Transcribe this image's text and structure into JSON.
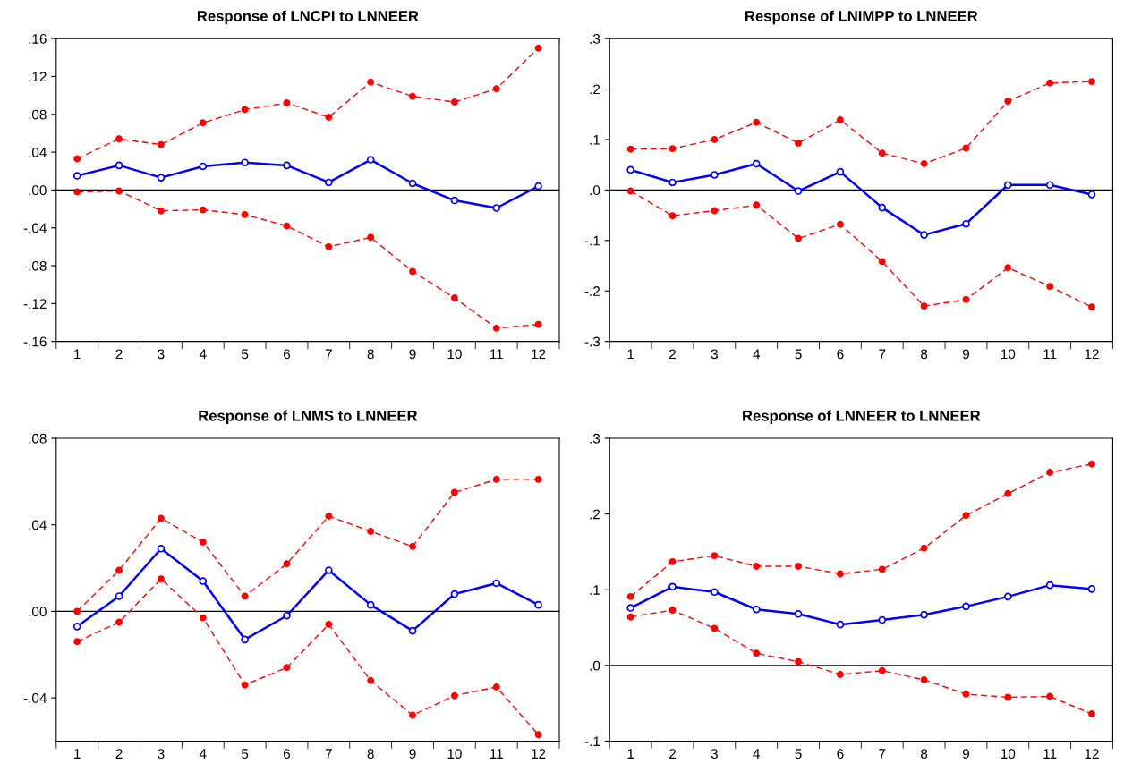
{
  "chart_data": [
    {
      "type": "line",
      "title": "Response of LNCPI to LNNEER",
      "categories": [
        "1",
        "2",
        "3",
        "4",
        "5",
        "6",
        "7",
        "8",
        "9",
        "10",
        "11",
        "12"
      ],
      "ylim": [
        -0.16,
        0.16
      ],
      "yticks": [
        {
          "value": -0.16,
          "label": "-.16"
        },
        {
          "value": -0.12,
          "label": "-.12"
        },
        {
          "value": -0.08,
          "label": "-.08"
        },
        {
          "value": -0.04,
          "label": "-.04"
        },
        {
          "value": 0,
          "label": ".00"
        },
        {
          "value": 0.04,
          "label": ".04"
        },
        {
          "value": 0.08,
          "label": ".08"
        },
        {
          "value": 0.12,
          "label": ".12"
        },
        {
          "value": 0.16,
          "label": ".16"
        }
      ],
      "grid": false,
      "legend": false,
      "ref_lines": [
        {
          "axis": "y",
          "value": 0,
          "color": "#000000"
        }
      ],
      "series": [
        {
          "color": "#ff0000",
          "marker": "circle",
          "line_style": "dashed",
          "values": [
            0.033,
            0.054,
            0.048,
            0.071,
            0.085,
            0.092,
            0.077,
            0.114,
            0.099,
            0.093,
            0.107,
            0.15
          ]
        },
        {
          "color": "#ff0000",
          "marker": "circle",
          "line_style": "dashed",
          "values": [
            -0.002,
            -0.001,
            -0.022,
            -0.021,
            -0.026,
            -0.038,
            -0.06,
            -0.05,
            -0.086,
            -0.114,
            -0.146,
            -0.142
          ]
        },
        {
          "color": "#0000ff",
          "marker": "circle",
          "line_style": "solid",
          "values": [
            0.015,
            0.026,
            0.013,
            0.025,
            0.029,
            0.026,
            0.008,
            0.032,
            0.007,
            -0.011,
            -0.019,
            0.004
          ]
        }
      ]
    },
    {
      "type": "line",
      "title": "Response of LNIMPP to LNNEER",
      "categories": [
        "1",
        "2",
        "3",
        "4",
        "5",
        "6",
        "7",
        "8",
        "9",
        "10",
        "11",
        "12"
      ],
      "ylim": [
        -0.3,
        0.3
      ],
      "yticks": [
        {
          "value": -0.3,
          "label": "-.3"
        },
        {
          "value": -0.2,
          "label": "-.2"
        },
        {
          "value": -0.1,
          "label": "-.1"
        },
        {
          "value": 0,
          "label": ".0"
        },
        {
          "value": 0.1,
          "label": ".1"
        },
        {
          "value": 0.2,
          "label": ".2"
        },
        {
          "value": 0.3,
          "label": ".3"
        }
      ],
      "grid": false,
      "legend": false,
      "ref_lines": [
        {
          "axis": "y",
          "value": 0,
          "color": "#000000"
        }
      ],
      "series": [
        {
          "color": "#ff0000",
          "marker": "circle",
          "line_style": "dashed",
          "values": [
            0.081,
            0.082,
            0.1,
            0.134,
            0.093,
            0.139,
            0.073,
            0.052,
            0.083,
            0.176,
            0.212,
            0.215
          ]
        },
        {
          "color": "#ff0000",
          "marker": "circle",
          "line_style": "dashed",
          "values": [
            -0.002,
            -0.051,
            -0.041,
            -0.03,
            -0.096,
            -0.068,
            -0.142,
            -0.23,
            -0.217,
            -0.154,
            -0.191,
            -0.232
          ]
        },
        {
          "color": "#0000ff",
          "marker": "circle",
          "line_style": "solid",
          "values": [
            0.04,
            0.015,
            0.03,
            0.052,
            -0.002,
            0.036,
            -0.035,
            -0.089,
            -0.067,
            0.01,
            0.01,
            -0.009
          ]
        }
      ]
    },
    {
      "type": "line",
      "title": "Response of LNMS to LNNEER",
      "categories": [
        "1",
        "2",
        "3",
        "4",
        "5",
        "6",
        "7",
        "8",
        "9",
        "10",
        "11",
        "12"
      ],
      "ylim": [
        -0.06,
        0.08
      ],
      "yticks": [
        {
          "value": -0.04,
          "label": "-.04"
        },
        {
          "value": 0,
          "label": ".00"
        },
        {
          "value": 0.04,
          "label": ".04"
        },
        {
          "value": 0.08,
          "label": ".08"
        }
      ],
      "grid": false,
      "legend": false,
      "ref_lines": [
        {
          "axis": "y",
          "value": 0,
          "color": "#000000"
        }
      ],
      "series": [
        {
          "color": "#ff0000",
          "marker": "circle",
          "line_style": "dashed",
          "values": [
            0.0,
            0.019,
            0.043,
            0.032,
            0.007,
            0.022,
            0.044,
            0.037,
            0.03,
            0.055,
            0.061,
            0.061
          ]
        },
        {
          "color": "#ff0000",
          "marker": "circle",
          "line_style": "dashed",
          "values": [
            -0.014,
            -0.005,
            0.015,
            -0.003,
            -0.034,
            -0.026,
            -0.006,
            -0.032,
            -0.048,
            -0.039,
            -0.035,
            -0.057
          ]
        },
        {
          "color": "#0000ff",
          "marker": "circle",
          "line_style": "solid",
          "values": [
            -0.007,
            0.007,
            0.029,
            0.014,
            -0.013,
            -0.002,
            0.019,
            0.003,
            -0.009,
            0.008,
            0.013,
            0.003
          ]
        }
      ]
    },
    {
      "type": "line",
      "title": "Response of LNNEER to LNNEER",
      "categories": [
        "1",
        "2",
        "3",
        "4",
        "5",
        "6",
        "7",
        "8",
        "9",
        "10",
        "11",
        "12"
      ],
      "ylim": [
        -0.1,
        0.3
      ],
      "yticks": [
        {
          "value": -0.1,
          "label": "-.1"
        },
        {
          "value": 0,
          "label": ".0"
        },
        {
          "value": 0.1,
          "label": ".1"
        },
        {
          "value": 0.2,
          "label": ".2"
        },
        {
          "value": 0.3,
          "label": ".3"
        }
      ],
      "grid": false,
      "legend": false,
      "ref_lines": [
        {
          "axis": "y",
          "value": 0,
          "color": "#000000"
        }
      ],
      "series": [
        {
          "color": "#ff0000",
          "marker": "circle",
          "line_style": "dashed",
          "values": [
            0.091,
            0.137,
            0.145,
            0.131,
            0.131,
            0.121,
            0.127,
            0.155,
            0.198,
            0.227,
            0.255,
            0.266
          ]
        },
        {
          "color": "#ff0000",
          "marker": "circle",
          "line_style": "dashed",
          "values": [
            0.064,
            0.073,
            0.049,
            0.016,
            0.005,
            -0.012,
            -0.007,
            -0.019,
            -0.038,
            -0.042,
            -0.041,
            -0.064
          ]
        },
        {
          "color": "#0000ff",
          "marker": "circle",
          "line_style": "solid",
          "values": [
            0.076,
            0.104,
            0.097,
            0.074,
            0.068,
            0.054,
            0.06,
            0.067,
            0.078,
            0.091,
            0.106,
            0.101
          ]
        }
      ]
    }
  ]
}
